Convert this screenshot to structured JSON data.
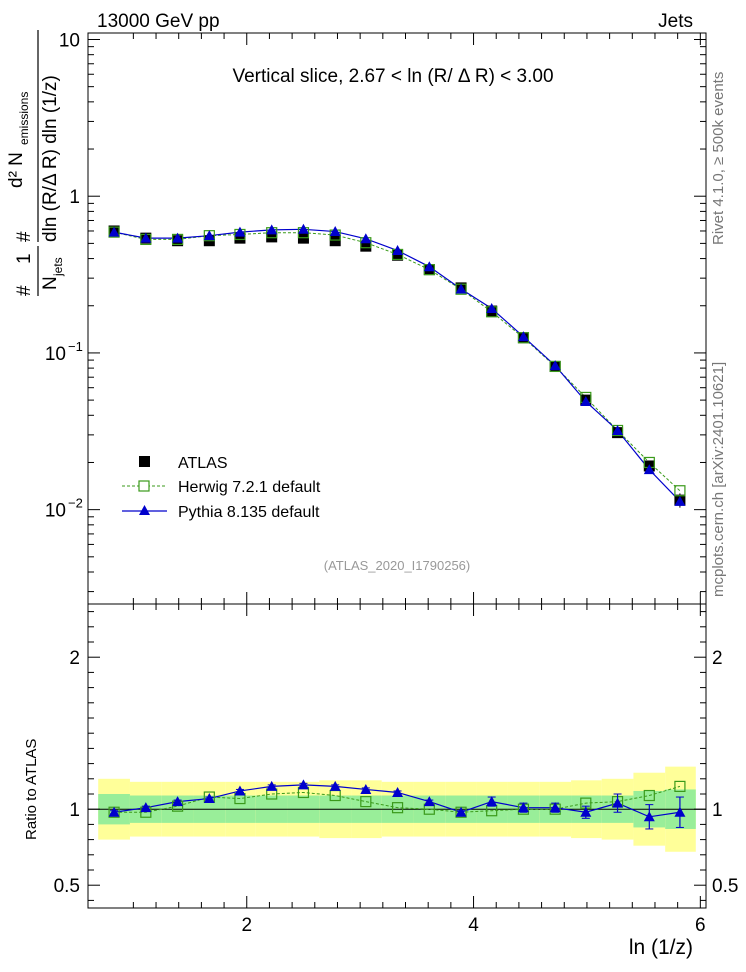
{
  "header": {
    "left": "13000 GeV pp",
    "right": "Jets"
  },
  "side_labels": {
    "rivet": "Rivet 4.1.0, ≥ 500k events",
    "mcplots": "mcplots.cern.ch [arXiv:2401.10621]"
  },
  "colors": {
    "atlas": "#000000",
    "herwig": "#3a9a1a",
    "pythia": "#0000cc",
    "band_inner": "#99ee99",
    "band_outer": "#ffff99"
  },
  "chart_data": {
    "type": "scatter",
    "title": "Vertical slice, 2.67 < ln (R/ Δ R) < 3.00",
    "watermark": "(ATLAS_2020_I1790256)",
    "xlabel": "ln (1/z)",
    "ylabel_main": "1/N_jets d²N_emissions / dln(R/ΔR) dln(1/z)",
    "ylabel_main_parts": {
      "one": "1",
      "njets": "N",
      "njets_sub": "jets",
      "d2n": "d² N",
      "emissions": "emissions",
      "denom": "dln (R/Δ R) dln (1/z)",
      "hash": "#"
    },
    "ylabel_ratio": "Ratio to ATLAS",
    "xlim": [
      0.6,
      6.05
    ],
    "ylim_main": [
      0.0025,
      11
    ],
    "ylim_ratio": [
      0.35,
      2.35
    ],
    "yscale_main": "log",
    "x_ticks": [
      2,
      4,
      6
    ],
    "x_tick_labels": [
      "2",
      "4",
      "6"
    ],
    "main_tick_labels": [
      "10",
      "1",
      "10",
      "10"
    ],
    "main_tick_exponents": [
      "",
      "",
      "−1",
      "−2"
    ],
    "ratio_ticks": [
      0.5,
      1,
      2
    ],
    "ratio_tick_labels": [
      "0.5",
      "1",
      "2"
    ],
    "legend": {
      "position": "bottom-left",
      "entries": [
        "ATLAS",
        "Herwig 7.2.1 default",
        "Pythia 8.135 default"
      ]
    },
    "x": [
      0.83,
      1.11,
      1.39,
      1.67,
      1.94,
      2.22,
      2.5,
      2.78,
      3.05,
      3.33,
      3.61,
      3.89,
      4.16,
      4.44,
      4.72,
      4.99,
      5.27,
      5.55,
      5.82
    ],
    "bin_edges": [
      0.69,
      0.97,
      1.25,
      1.53,
      1.81,
      2.08,
      2.36,
      2.64,
      2.92,
      3.19,
      3.47,
      3.75,
      4.03,
      4.3,
      4.58,
      4.86,
      5.13,
      5.41,
      5.69,
      5.96
    ],
    "series": [
      {
        "name": "ATLAS",
        "marker": "square-filled",
        "values": [
          0.6,
          0.54,
          0.52,
          0.52,
          0.54,
          0.55,
          0.54,
          0.52,
          0.48,
          0.42,
          0.34,
          0.26,
          0.185,
          0.125,
          0.082,
          0.05,
          0.031,
          0.019,
          0.0115
        ],
        "errors": [
          0.02,
          0.02,
          0.02,
          0.02,
          0.02,
          0.02,
          0.02,
          0.02,
          0.02,
          0.02,
          0.015,
          0.01,
          0.007,
          0.005,
          0.003,
          0.002,
          0.0015,
          0.0015,
          0.0012
        ],
        "band_inner": [
          0.1,
          0.09,
          0.09,
          0.09,
          0.09,
          0.09,
          0.09,
          0.09,
          0.09,
          0.09,
          0.09,
          0.09,
          0.09,
          0.09,
          0.09,
          0.09,
          0.09,
          0.12,
          0.13
        ],
        "band_outer": [
          0.2,
          0.18,
          0.18,
          0.18,
          0.18,
          0.18,
          0.18,
          0.19,
          0.19,
          0.18,
          0.18,
          0.18,
          0.18,
          0.18,
          0.18,
          0.19,
          0.2,
          0.24,
          0.28
        ]
      },
      {
        "name": "Herwig 7.2.1 default",
        "marker": "square-open",
        "values": [
          0.59,
          0.53,
          0.53,
          0.56,
          0.57,
          0.585,
          0.585,
          0.565,
          0.505,
          0.425,
          0.34,
          0.255,
          0.183,
          0.125,
          0.082,
          0.052,
          0.032,
          0.02,
          0.0132
        ],
        "ratio": [
          0.98,
          0.98,
          1.02,
          1.08,
          1.07,
          1.1,
          1.11,
          1.09,
          1.05,
          1.01,
          1.0,
          0.98,
          0.99,
          1.0,
          1.0,
          1.04,
          1.05,
          1.09,
          1.15
        ]
      },
      {
        "name": "Pythia 8.135 default",
        "marker": "triangle",
        "values": [
          0.59,
          0.54,
          0.54,
          0.56,
          0.59,
          0.61,
          0.615,
          0.595,
          0.535,
          0.45,
          0.355,
          0.256,
          0.192,
          0.127,
          0.083,
          0.049,
          0.032,
          0.018,
          0.0113
        ],
        "ratio": [
          0.98,
          1.01,
          1.05,
          1.07,
          1.12,
          1.15,
          1.16,
          1.15,
          1.13,
          1.11,
          1.05,
          0.98,
          1.05,
          1.01,
          1.01,
          0.98,
          1.04,
          0.95,
          0.98
        ],
        "ratio_errors": [
          0.01,
          0.01,
          0.01,
          0.01,
          0.01,
          0.01,
          0.01,
          0.01,
          0.01,
          0.01,
          0.01,
          0.01,
          0.03,
          0.03,
          0.03,
          0.04,
          0.06,
          0.08,
          0.1
        ]
      }
    ]
  }
}
